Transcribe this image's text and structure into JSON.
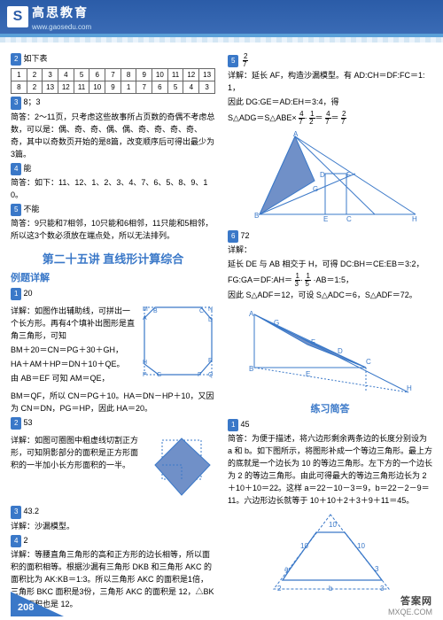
{
  "header": {
    "logo_letter": "S",
    "brand": "高思教育",
    "url": "www.gaosedu.com"
  },
  "left": {
    "b2_intro": "如下表",
    "table_r1": [
      "1",
      "2",
      "3",
      "4",
      "5",
      "6",
      "7",
      "8",
      "9",
      "10",
      "11",
      "12",
      "13"
    ],
    "table_r2": [
      "8",
      "2",
      "13",
      "12",
      "11",
      "10",
      "9",
      "1",
      "7",
      "6",
      "5",
      "4",
      "3"
    ],
    "b3_ans": "8；3",
    "b3_text": "简答：2～11页，只考虑这些故事所占页数的奇偶不考虑总数，可以是：偶、奇、奇、偶、偶、奇、奇、奇、奇、奇，其中以奇数页开始的是8篇，改变顺序后可得出最少为3篇。",
    "b4_ans": "能",
    "b4_text": "简答：如下：11、12、1、2、3、4、7、6、5、8、9、10。",
    "b5_ans": "不能",
    "b5_text": "简答：9只能和7相邻，10只能和6相邻，11只能和5相邻，所以这3个数必须放在端点处，所以无法排列。",
    "section_title": "第二十五讲 直线形计算综合",
    "sub1": "例题详解",
    "e1_ans": "20",
    "e1_text1": "详解：如图作出辅助线，可拼出一个长方形。再有4个填补出图形是直角三角形，可知",
    "e1_text2": "BM＋20＝CN＝PG＋30＋GH，",
    "e1_text3": "HA＋AM＋HP＝DN＋10＋QE。",
    "e1_text4": "由 AB＝EF 可知 AM＝QE，",
    "e1_text5": "BM＝QF，所以 CN＝PG＋10。HA＝DN－HP＋10，又因为 CN＝DN，PG＝HP，因此 HA＝20。",
    "e2_ans": "53",
    "e2_text": "详解：如图可圈图中粗虚线切割正方形，可知阴影部分的面积是正方形面积的一半加小长方形面积的一半。",
    "e3_ans": "43.2",
    "e3_label": "详解：沙漏模型。",
    "e4_ans": "2",
    "e4_text": "详解：等腰直角三角形的高和正方形的边长相等，所以面积的面积相等。根据沙漏有三角形 DKB 和三角形 AKC 的面积比为 AK:KB＝1:3。所以三角形 AKC 的面积是1倍，三角形 BKC 面积是3份，三角形 AKC 的面积是 12，△BKD 的面积也是 12。",
    "poly_labels": [
      "B",
      "M",
      "C",
      "A",
      "N",
      "E",
      "D",
      "H",
      "P",
      "G",
      "F",
      "Q"
    ]
  },
  "right": {
    "b5_head": "5",
    "b5_frac_top": "2",
    "b5_frac_bot": "7",
    "b5_text1": "详解：延长 AF，构造沙漏模型。有 AD:CH＝DF:FC＝1:1，",
    "b5_text2": "因此 DG:GE＝AD:EH＝3:4，得",
    "b5_eq": "S△ADG＝S△ABE×",
    "b5_eq_chain": [
      "4",
      "1",
      "4",
      "2"
    ],
    "b5_eq_chain2": [
      "7",
      "2",
      "7",
      "7"
    ],
    "tri1_labels": [
      "A",
      "B",
      "D",
      "G",
      "F",
      "E",
      "C",
      "H"
    ],
    "b6_ans": "72",
    "b6_label": "详解：",
    "b6_text1": "延长 DE 与 AB 相交于 H，可得 DC:BH＝CE:EB＝3:2，",
    "b6_text2": "FG:GA＝DF:AH＝",
    "b6_text3": "因此 S△ADF＝12，可设 S△ADC＝6，S△ADF＝72。",
    "b6_frac1_t": "1",
    "b6_frac1_b": "3",
    "b6_frac2_t": "1",
    "b6_frac2_b": "5",
    "b6_mid": "·AB＝1:5，",
    "tri2_labels": [
      "A",
      "B",
      "E",
      "D",
      "F",
      "G",
      "C",
      "H"
    ],
    "sub2": "练习简答",
    "p1_ans": "45",
    "p1_text": "简答：为便于描述，将六边形剩余两条边的长度分别设为 a 和 b。如下图所示，将图形补成一个等边三角形。最上方的底就是一个边长为 10 的等边三角形。左下方的一个边长为 2 的等边三角形。由此可得最大的等边三角形边长为 2＋10＋10＝22。这样 a＝22－10－3＝9，b＝22－2－9＝11。六边形边长就等于 10＋10＋2＋3＋9＋11＝45。",
    "tri3_top": "10",
    "tri3_left": [
      "10",
      "a"
    ],
    "tri3_bot": [
      "2",
      "b",
      "3"
    ],
    "tri3_lefttri": "2",
    "tri3_righttri": "3"
  },
  "page_number": "208",
  "watermark_brand": "答案网",
  "watermark_url": "MXQE.COM",
  "colors": {
    "primary": "#3a78c8",
    "header": "#2b5ca8",
    "shade": "#7090c8"
  }
}
